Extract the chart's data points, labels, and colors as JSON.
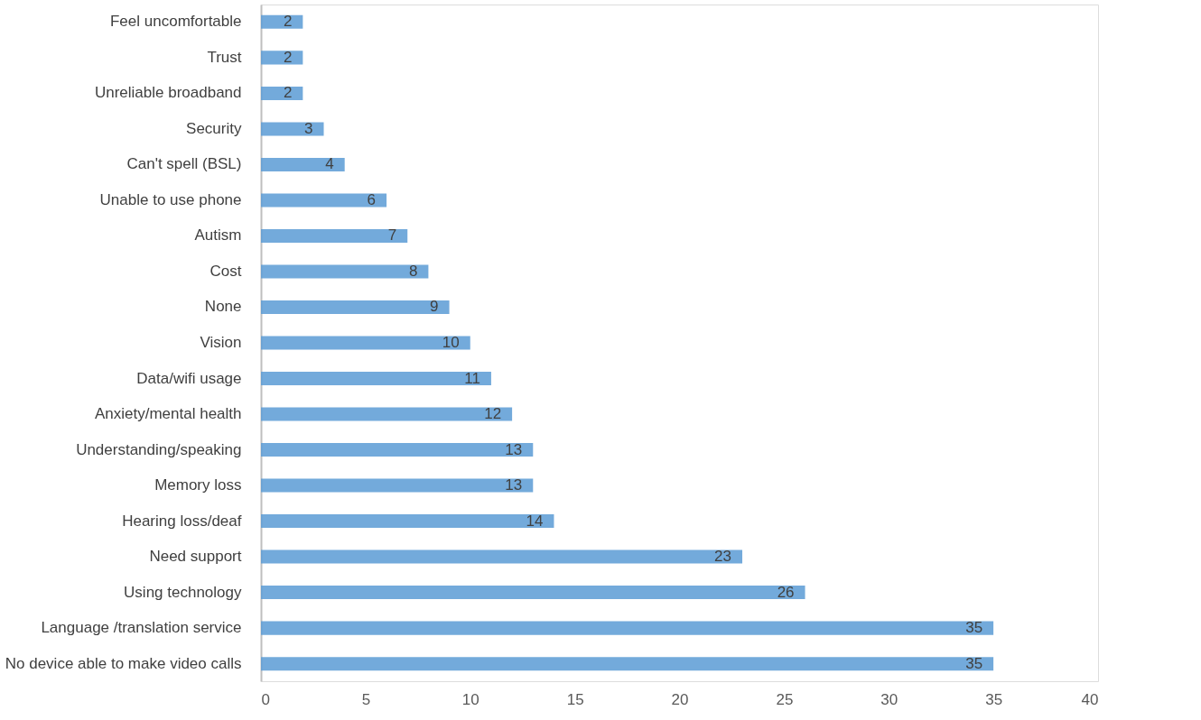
{
  "chart_data": {
    "type": "bar",
    "orientation": "horizontal",
    "categories": [
      "Feel uncomfortable",
      "Trust",
      "Unreliable broadband",
      "Security",
      "Can't spell (BSL)",
      "Unable to use phone",
      "Autism",
      "Cost",
      "None",
      "Vision",
      "Data/wifi usage",
      "Anxiety/mental health",
      "Understanding/speaking",
      "Memory loss",
      "Hearing loss/deaf",
      "Need support",
      "Using technology",
      "Language /translation service",
      "No device able to make video calls"
    ],
    "values": [
      2,
      2,
      2,
      3,
      4,
      6,
      7,
      8,
      9,
      10,
      11,
      12,
      13,
      13,
      14,
      23,
      26,
      35,
      35
    ],
    "color": "#5b9bd5",
    "xlim": [
      0,
      40
    ],
    "xticks": [
      0,
      5,
      10,
      15,
      20,
      25,
      30,
      35,
      40
    ],
    "data_labels": true,
    "grid": false
  }
}
